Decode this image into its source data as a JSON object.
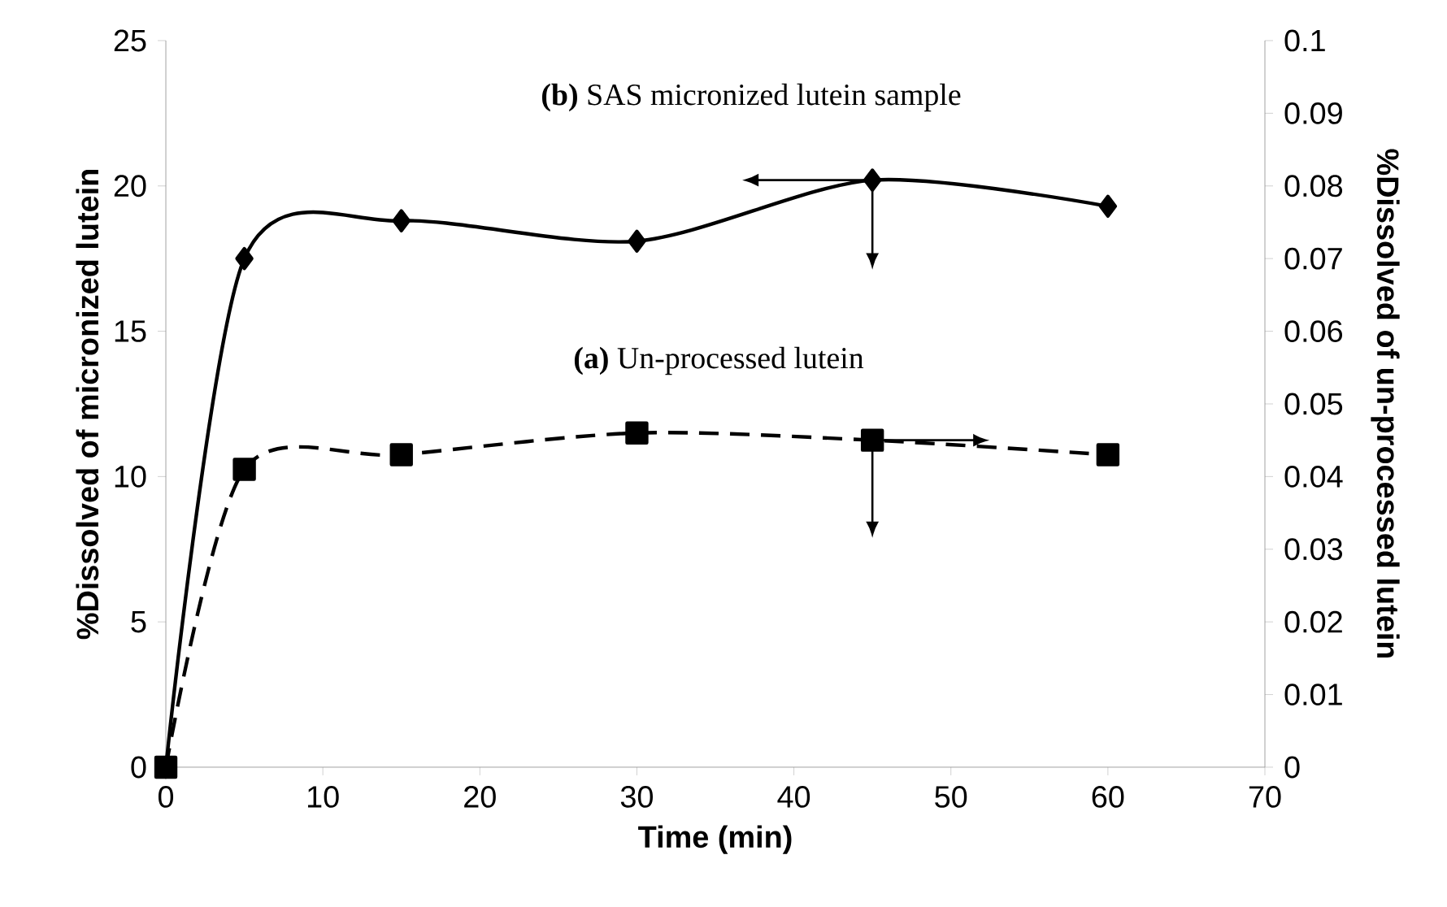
{
  "chart_data": {
    "type": "line",
    "xlabel": "Time (min)",
    "ylabel": "%Dissolved of micronized lutein",
    "y2label": "%Dissolved of un-processed lutein",
    "x": [
      0,
      5,
      15,
      30,
      45,
      60
    ],
    "series": [
      {
        "color": "#000000",
        "marker": "diamond",
        "line_style": "solid",
        "values": [
          0,
          17.5,
          18.8,
          18.1,
          20.2,
          19.3
        ]
      },
      {
        "color": "#000000",
        "marker": "square",
        "line_style": "dashed",
        "axis": "y2",
        "values": [
          0,
          0.041,
          0.043,
          0.046,
          0.045,
          0.043
        ]
      }
    ],
    "xlim": [
      0,
      70
    ],
    "xticks": [
      0,
      10,
      20,
      30,
      40,
      50,
      60,
      70
    ],
    "ylim": [
      0,
      25
    ],
    "yticks": [
      0,
      5,
      10,
      15,
      20,
      25
    ],
    "y2lim": [
      0,
      0.1
    ],
    "y2ticks": [
      0,
      0.01,
      0.02,
      0.03,
      0.04,
      0.05,
      0.06,
      0.07,
      0.08,
      0.09,
      0.1
    ],
    "annotations": [
      "**(b)** SAS micronized lutein sample",
      "**(a)** Un-processed lutein"
    ]
  }
}
